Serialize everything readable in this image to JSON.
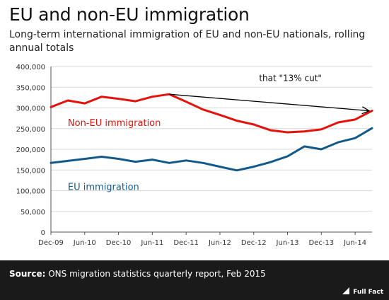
{
  "header": {
    "title": "EU and non-EU immigration",
    "subtitle": "Long-term international immigration of EU and non-EU nationals, rolling annual totals"
  },
  "footer": {
    "source_label": "Source:",
    "source_text": "ONS migration statistics quarterly report, Feb 2015",
    "logo_text": "Full Fact"
  },
  "chart_data": {
    "type": "line",
    "title": "",
    "xlabel": "",
    "ylabel": "",
    "categories": [
      "Dec-09",
      "Mar-10",
      "Jun-10",
      "Sep-10",
      "Dec-10",
      "Mar-11",
      "Jun-11",
      "Sep-11",
      "Dec-11",
      "Mar-12",
      "Jun-12",
      "Sep-12",
      "Dec-12",
      "Mar-13",
      "Jun-13",
      "Sep-13",
      "Dec-13",
      "Mar-14",
      "Jun-14",
      "Sep-14"
    ],
    "x_tick_labels": [
      "Dec-09",
      "Jun-10",
      "Dec-10",
      "Jun-11",
      "Dec-11",
      "Jun-12",
      "Dec-12",
      "Jun-13",
      "Dec-13",
      "Jun-14"
    ],
    "ylim": [
      0,
      400000
    ],
    "y_ticks": [
      0,
      50000,
      100000,
      150000,
      200000,
      250000,
      300000,
      350000,
      400000
    ],
    "y_tick_labels": [
      "0",
      "50,000",
      "100,000",
      "150,000",
      "200,000",
      "250,000",
      "300,000",
      "350,000",
      "400,000"
    ],
    "grid": true,
    "series": [
      {
        "name": "Non-EU immigration",
        "color": "#e3120b",
        "values": [
          302000,
          318000,
          311000,
          327000,
          322000,
          316000,
          327000,
          333000,
          315000,
          296000,
          283000,
          269000,
          260000,
          246000,
          241000,
          243000,
          248000,
          265000,
          272000,
          293000
        ]
      },
      {
        "name": "EU immigration",
        "color": "#135a8c",
        "values": [
          167000,
          172000,
          177000,
          182000,
          177000,
          170000,
          175000,
          167000,
          173000,
          167000,
          158000,
          149000,
          158000,
          169000,
          183000,
          207000,
          200000,
          217000,
          227000,
          251000
        ]
      }
    ],
    "annotation": {
      "text": "that \"13% cut\"",
      "from_category": "Sep-11",
      "to_category": "Sep-14",
      "from_value": 333000,
      "to_value": 293000
    }
  }
}
